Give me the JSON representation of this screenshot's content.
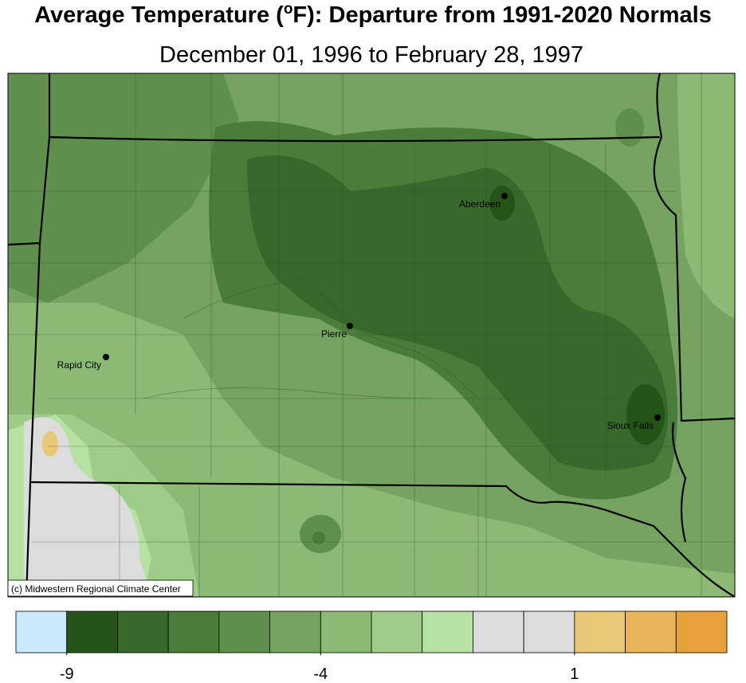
{
  "header": {
    "title_before": "Average Temperature (",
    "title_sup": "o",
    "title_after": "F): Departure from 1991-2020 Normals",
    "subtitle": "December 01, 1996 to February 28, 1997"
  },
  "cities": [
    {
      "label": "Aberdeen"
    },
    {
      "label": "Pierre"
    },
    {
      "label": "Rapid City"
    },
    {
      "label": "Sioux Falls"
    }
  ],
  "credit": "(c) Midwestern Regional Climate Center",
  "legend": {
    "range": [
      -10,
      4
    ],
    "ticks": [
      -9,
      -4,
      1
    ],
    "colors": [
      "#c8e8fb",
      "#245517",
      "#36692a",
      "#4a7d3a",
      "#5e904b",
      "#74a45f",
      "#8aba73",
      "#a0cc8a",
      "#b5e2a3",
      "#dcdcdc",
      "#dcdcdc",
      "#e8c776",
      "#e8b45a",
      "#e8a23c"
    ]
  }
}
